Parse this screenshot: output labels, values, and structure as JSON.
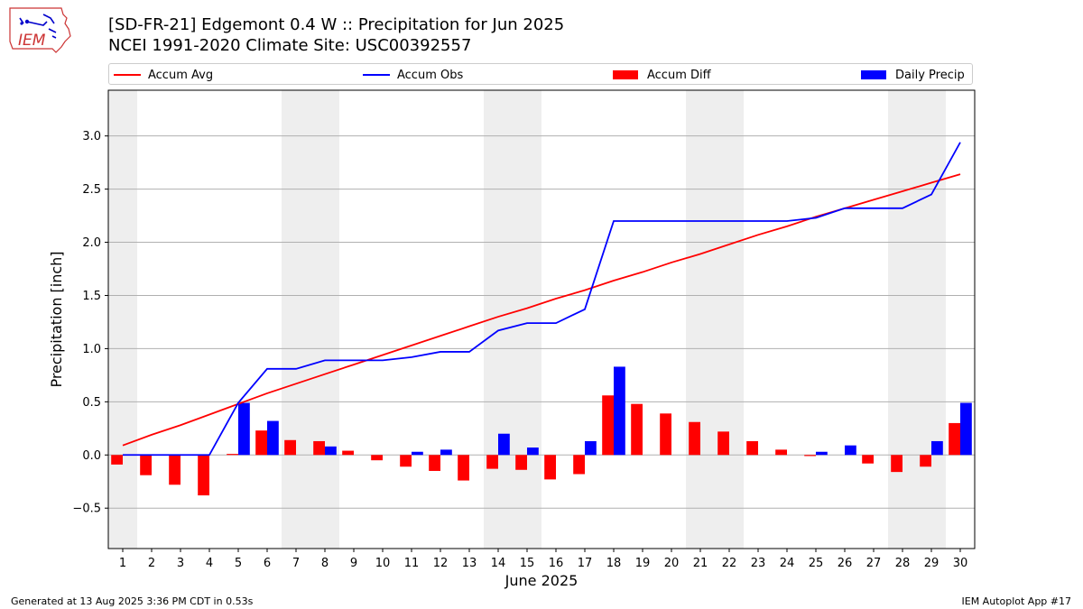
{
  "header": {
    "title_line1": "[SD-FR-21] Edgemont 0.4 W :: Precipitation for Jun 2025",
    "title_line2": "NCEI 1991-2020 Climate Site: USC00392557"
  },
  "logo": {
    "text": "IEM"
  },
  "legend": {
    "items": [
      {
        "label": "Accum Avg",
        "color": "#ff0000",
        "kind": "line"
      },
      {
        "label": "Accum Obs",
        "color": "#0000ff",
        "kind": "line"
      },
      {
        "label": "Accum Diff",
        "color": "#ff0000",
        "kind": "bar"
      },
      {
        "label": "Daily Precip",
        "color": "#0000ff",
        "kind": "bar"
      }
    ]
  },
  "footer": {
    "left": "Generated at 13 Aug 2025 3:36 PM CDT in 0.53s",
    "right": "IEM Autoplot App #17"
  },
  "chart_data": {
    "type": "bar",
    "xlabel": "June 2025",
    "ylabel": "Precipitation [inch]",
    "ylim": [
      -0.88,
      3.43
    ],
    "yticks": [
      -0.5,
      0.0,
      0.5,
      1.0,
      1.5,
      2.0,
      2.5,
      3.0
    ],
    "ytick_labels": [
      "−0.5",
      "0.0",
      "0.5",
      "1.0",
      "1.5",
      "2.0",
      "2.5",
      "3.0"
    ],
    "grid": "horizontal",
    "legend_position": "top",
    "weekend_shading_color": "#eeeeee",
    "weekend_days": [
      1,
      7,
      8,
      14,
      15,
      21,
      22,
      28,
      29
    ],
    "days": [
      1,
      2,
      3,
      4,
      5,
      6,
      7,
      8,
      9,
      10,
      11,
      12,
      13,
      14,
      15,
      16,
      17,
      18,
      19,
      20,
      21,
      22,
      23,
      24,
      25,
      26,
      27,
      28,
      29,
      30
    ],
    "series": [
      {
        "name": "Accum Avg",
        "type": "line",
        "color": "#ff0000",
        "values": [
          0.09,
          0.19,
          0.28,
          0.38,
          0.48,
          0.58,
          0.67,
          0.76,
          0.85,
          0.94,
          1.03,
          1.12,
          1.21,
          1.3,
          1.38,
          1.47,
          1.55,
          1.64,
          1.72,
          1.81,
          1.89,
          1.98,
          2.07,
          2.15,
          2.24,
          2.32,
          2.4,
          2.48,
          2.56,
          2.64
        ]
      },
      {
        "name": "Accum Obs",
        "type": "line",
        "color": "#0000ff",
        "values": [
          0.0,
          0.0,
          0.0,
          0.0,
          0.49,
          0.81,
          0.81,
          0.89,
          0.89,
          0.89,
          0.92,
          0.97,
          0.97,
          1.17,
          1.24,
          1.24,
          1.37,
          2.2,
          2.2,
          2.2,
          2.2,
          2.2,
          2.2,
          2.2,
          2.23,
          2.32,
          2.32,
          2.32,
          2.45,
          2.94
        ]
      },
      {
        "name": "Accum Diff",
        "type": "bar",
        "color": "#ff0000",
        "values": [
          -0.09,
          -0.19,
          -0.28,
          -0.38,
          0.01,
          0.23,
          0.14,
          0.13,
          0.04,
          -0.05,
          -0.11,
          -0.15,
          -0.24,
          -0.13,
          -0.14,
          -0.23,
          -0.18,
          0.56,
          0.48,
          0.39,
          0.31,
          0.22,
          0.13,
          0.05,
          -0.01,
          0.0,
          -0.08,
          -0.16,
          -0.11,
          0.3
        ]
      },
      {
        "name": "Daily Precip",
        "type": "bar",
        "color": "#0000ff",
        "values": [
          0.0,
          0.0,
          0.0,
          0.0,
          0.49,
          0.32,
          0.0,
          0.08,
          0.0,
          0.0,
          0.03,
          0.05,
          0.0,
          0.2,
          0.07,
          0.0,
          0.13,
          0.83,
          0.0,
          0.0,
          0.0,
          0.0,
          0.0,
          0.0,
          0.03,
          0.09,
          0.0,
          0.0,
          0.13,
          0.49
        ]
      }
    ]
  }
}
